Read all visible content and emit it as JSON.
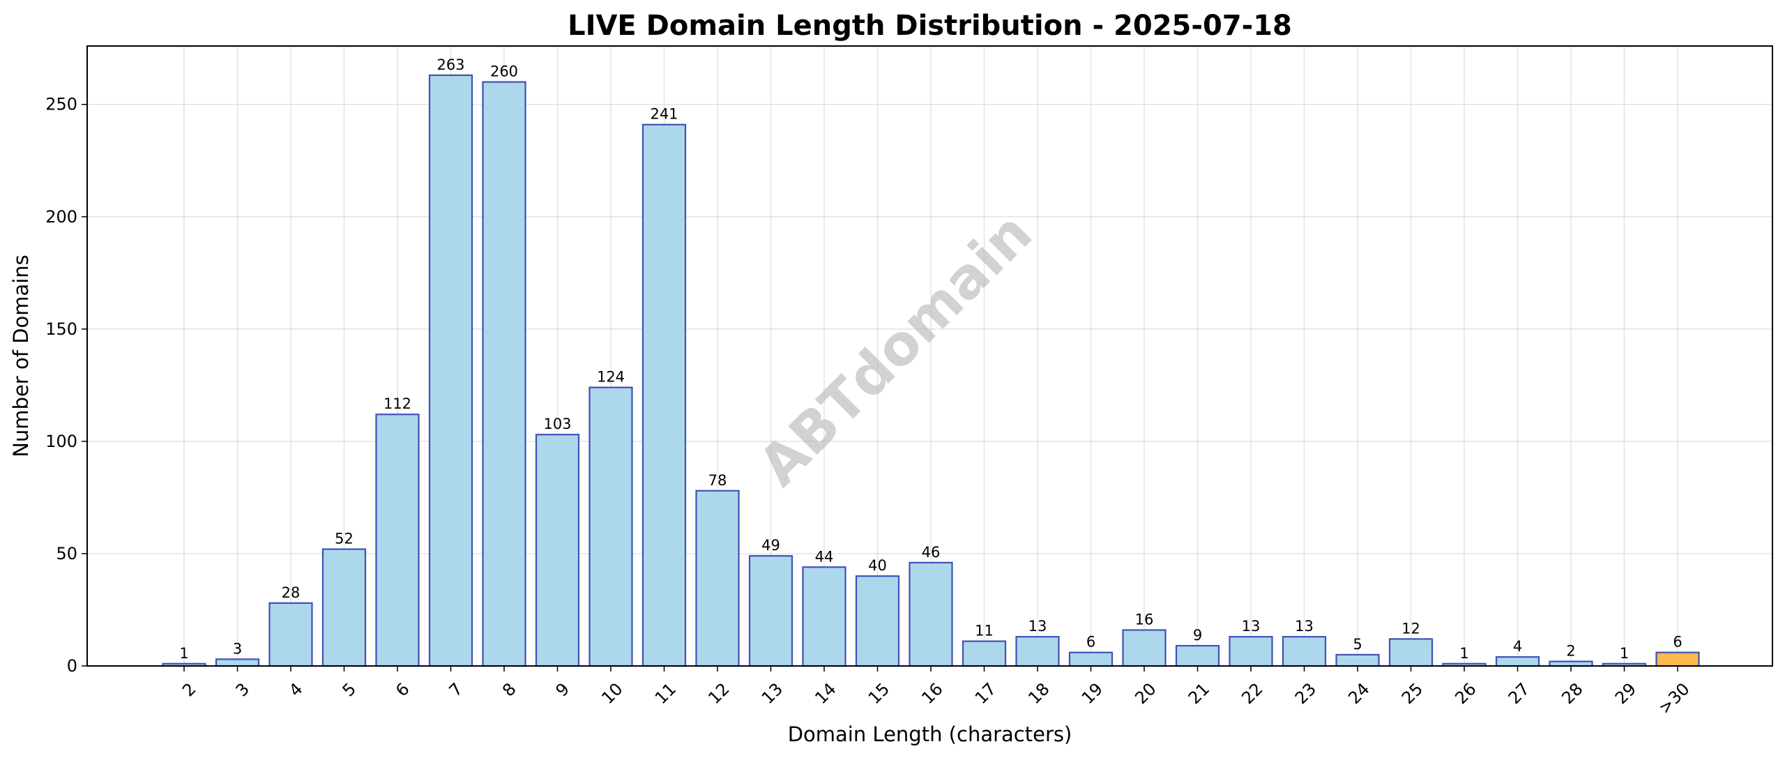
{
  "chart_data": {
    "type": "bar",
    "title": "LIVE Domain Length Distribution - 2025-07-18",
    "xlabel": "Domain Length (characters)",
    "ylabel": "Number of Domains",
    "categories": [
      "2",
      "3",
      "4",
      "5",
      "6",
      "7",
      "8",
      "9",
      "10",
      "11",
      "12",
      "13",
      "14",
      "15",
      "16",
      "17",
      "18",
      "19",
      "20",
      "21",
      "22",
      "23",
      "24",
      "25",
      "26",
      "27",
      "28",
      "29",
      ">30"
    ],
    "values": [
      1,
      3,
      28,
      52,
      112,
      263,
      260,
      103,
      124,
      241,
      78,
      49,
      44,
      40,
      46,
      11,
      13,
      6,
      16,
      9,
      13,
      13,
      5,
      12,
      1,
      4,
      2,
      1,
      6
    ],
    "ylim": [
      0,
      276
    ],
    "yticks": [
      0,
      50,
      100,
      150,
      200,
      250
    ],
    "grid": true,
    "legend": "none",
    "watermark": "ABTdomain",
    "colors": {
      "bar_fill": "#add8ec",
      "bar_edge": "#3f51b5",
      "highlight_fill": "#fdb84f",
      "highlight_edge": "#3f51b5"
    },
    "highlight_category": ">30"
  }
}
